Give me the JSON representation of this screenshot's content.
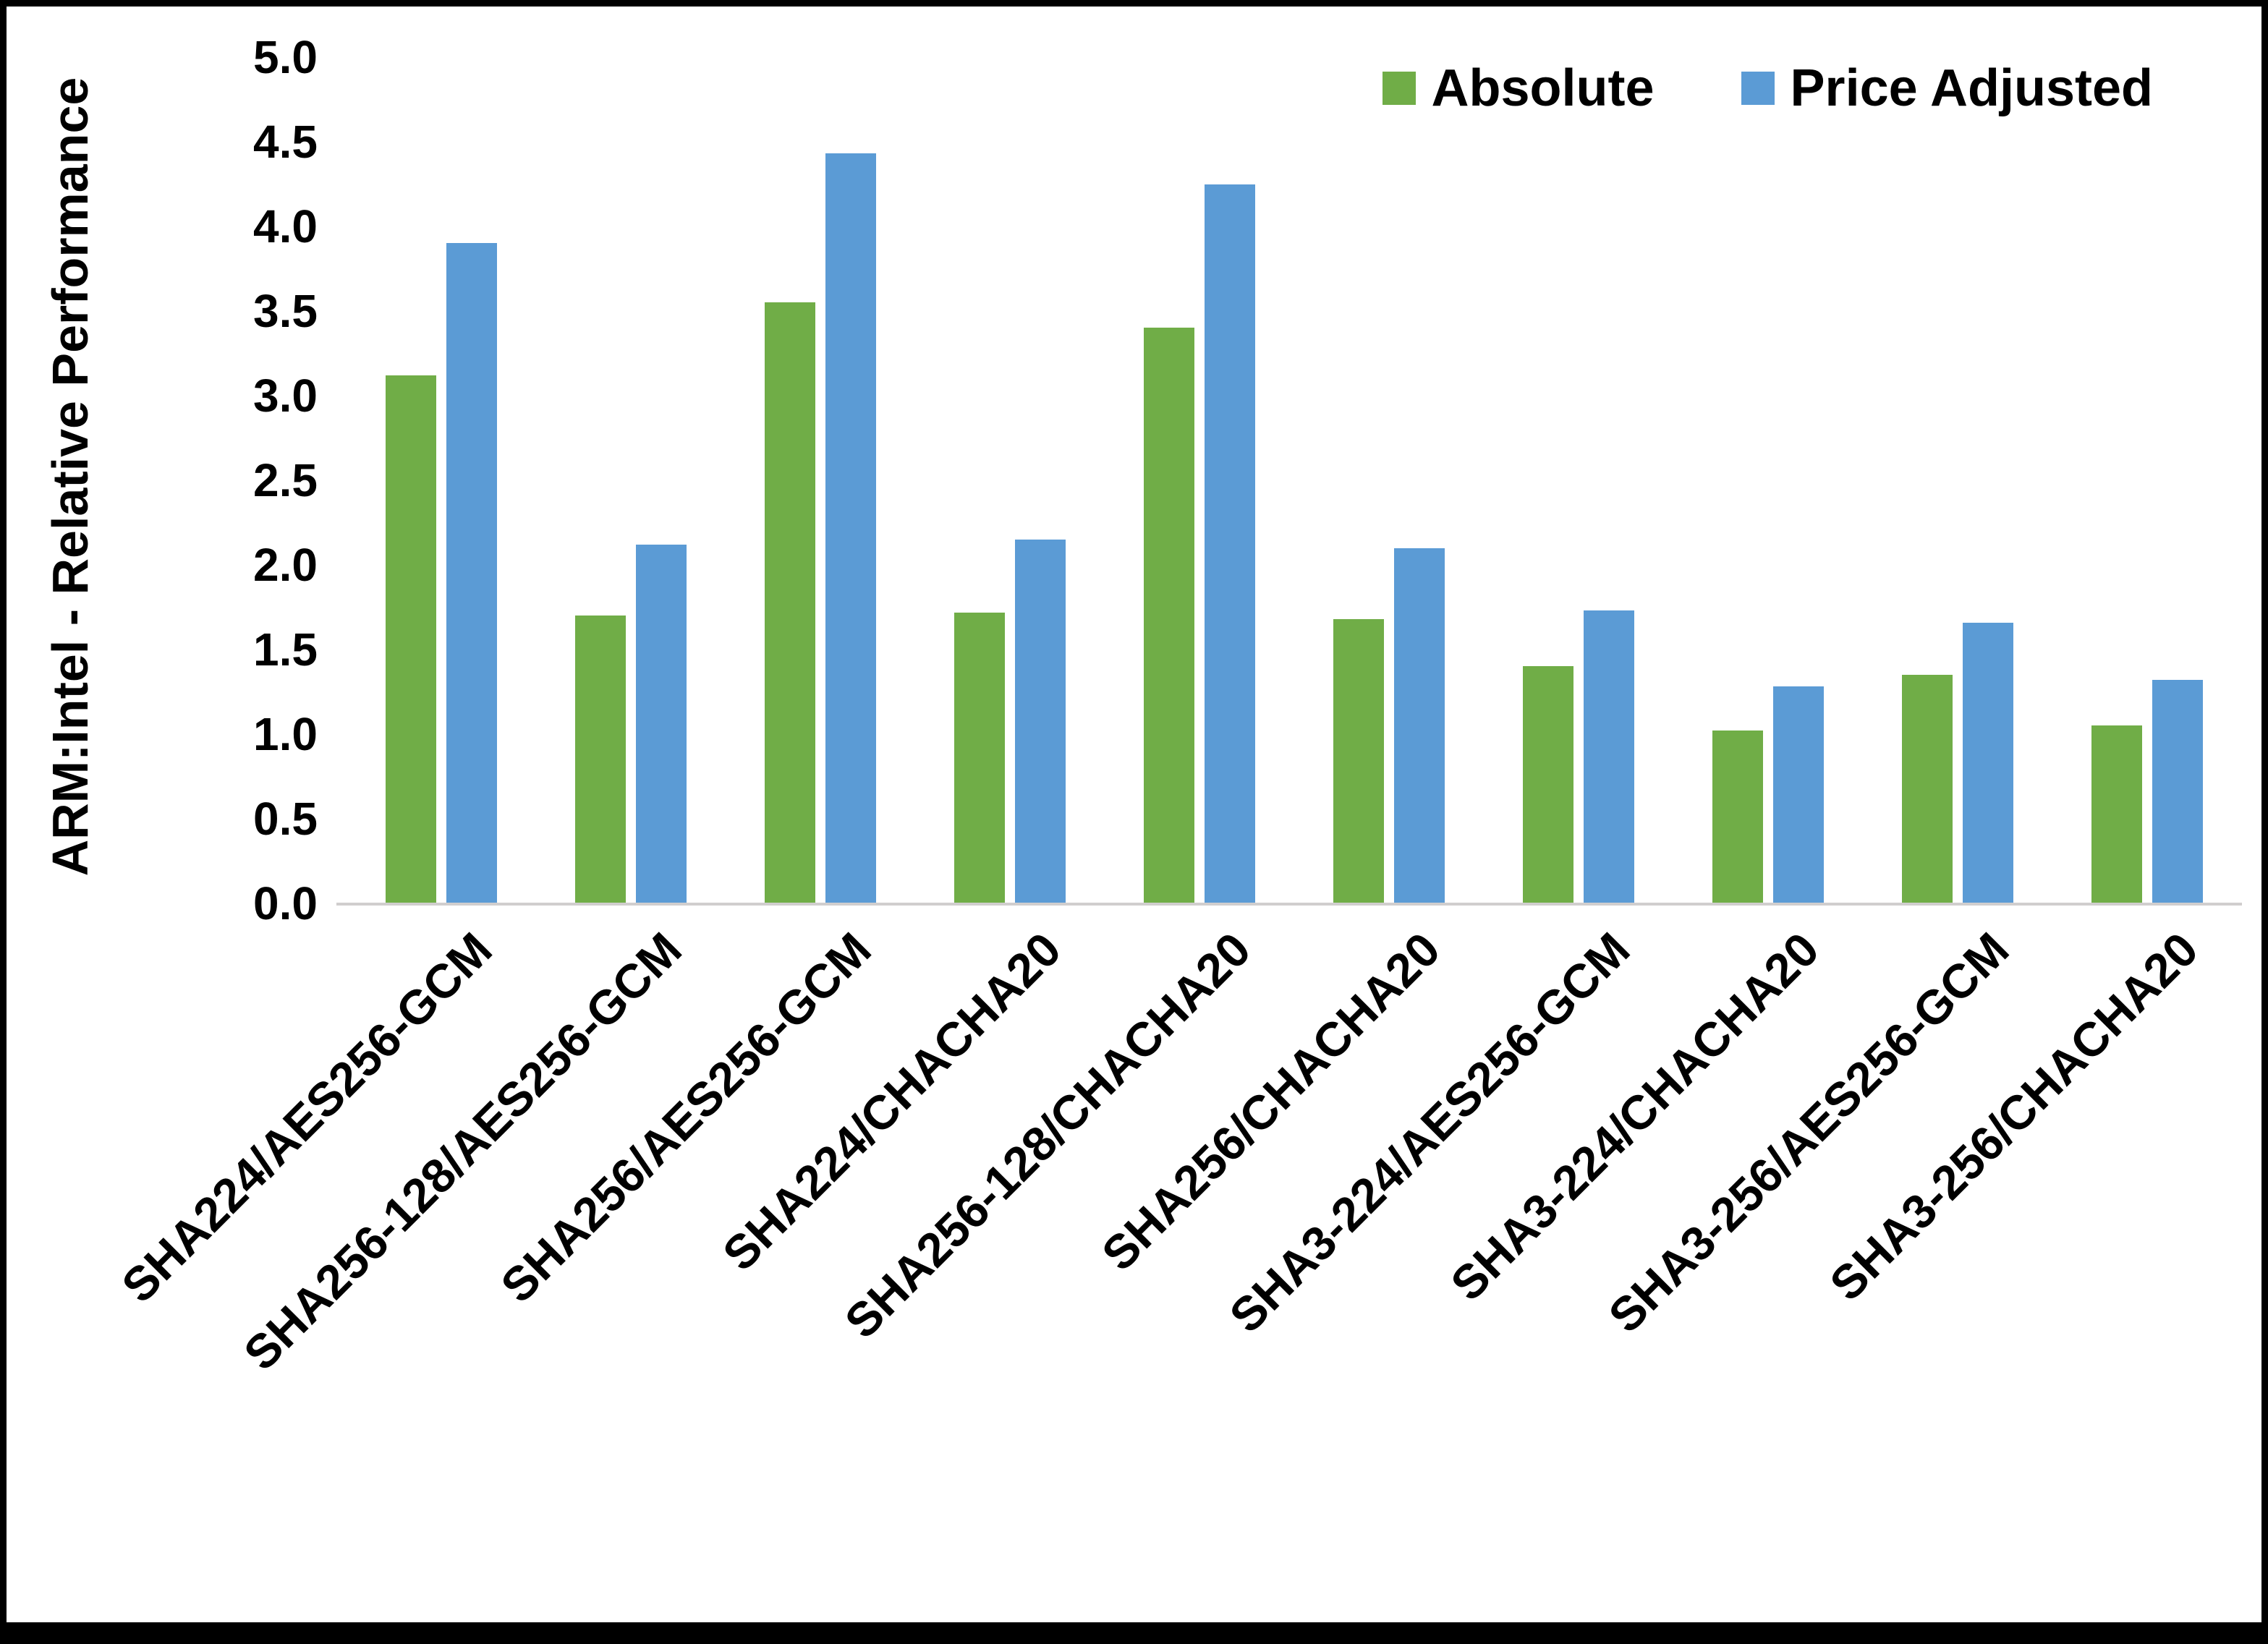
{
  "chart_data": {
    "type": "bar",
    "title": "",
    "xlabel": "",
    "ylabel": "ARM:Intel - Relative Performance",
    "ylim": [
      0,
      5
    ],
    "ytick_step": 0.5,
    "ytick_format_decimals": 1,
    "grid": false,
    "legend_position": "top-right",
    "categories": [
      "SHA224/AES256-GCM",
      "SHA256-128/AES256-GCM",
      "SHA256/AES256-GCM",
      "SHA224/CHACHA20",
      "SHA256-128/CHACHA20",
      "SHA256/CHACHA20",
      "SHA3-224/AES256-GCM",
      "SHA3-224/CHACHA20",
      "SHA3-256/AES256-GCM",
      "SHA3-256/CHACHA20"
    ],
    "series": [
      {
        "name": "Absolute",
        "color": "#70AD47",
        "values": [
          3.12,
          1.7,
          3.55,
          1.72,
          3.4,
          1.68,
          1.4,
          1.02,
          1.35,
          1.05
        ]
      },
      {
        "name": "Price Adjusted",
        "color": "#5B9BD5",
        "values": [
          3.9,
          2.12,
          4.43,
          2.15,
          4.25,
          2.1,
          1.73,
          1.28,
          1.66,
          1.32
        ]
      }
    ]
  },
  "frame": {
    "border_color": "#000000",
    "baseline_color": "#d0cece",
    "background_color": "#ffffff"
  }
}
